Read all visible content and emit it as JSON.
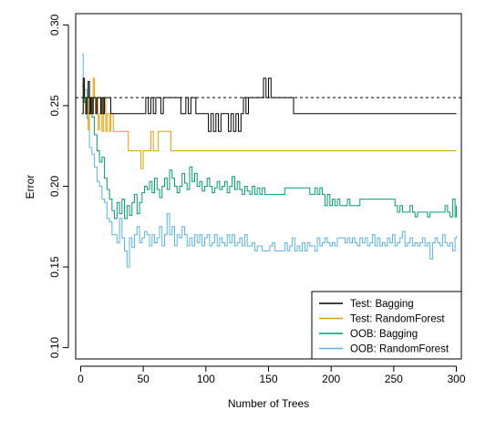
{
  "chart_data": {
    "type": "line",
    "xlabel": "Number of Trees",
    "ylabel": "Error",
    "xlim": [
      -4,
      304
    ],
    "ylim": [
      0.093,
      0.307
    ],
    "x_ticks": [
      0,
      50,
      100,
      150,
      200,
      250,
      300
    ],
    "y_ticks": [
      0.1,
      0.15,
      0.2,
      0.25,
      0.3
    ],
    "x_tick_labels": [
      "0",
      "50",
      "100",
      "150",
      "200",
      "250",
      "300"
    ],
    "y_tick_labels": [
      "0.10",
      "0.15",
      "0.20",
      "0.25",
      "0.30"
    ],
    "reference_line": {
      "y": 0.255,
      "style": "dashed",
      "color": "#000000"
    },
    "legend_position": "bottom-right",
    "series": [
      {
        "name": "Test: Bagging",
        "color": "#000000",
        "x": [
          1,
          2,
          3,
          4,
          5,
          6,
          7,
          8,
          9,
          10,
          11,
          12,
          13,
          14,
          15,
          16,
          17,
          18,
          19,
          20,
          21,
          22,
          24,
          26,
          28,
          30,
          32,
          34,
          36,
          38,
          40,
          42,
          44,
          46,
          48,
          50,
          52,
          54,
          56,
          58,
          60,
          62,
          64,
          66,
          68,
          70,
          72,
          74,
          76,
          78,
          80,
          82,
          84,
          86,
          88,
          90,
          92,
          94,
          96,
          98,
          100,
          102,
          104,
          106,
          108,
          110,
          112,
          114,
          116,
          118,
          120,
          122,
          124,
          126,
          128,
          130,
          132,
          134,
          136,
          138,
          140,
          142,
          144,
          146,
          148,
          150,
          152,
          154,
          156,
          158,
          160,
          162,
          164,
          166,
          170,
          200,
          250,
          300
        ],
        "y": [
          0.245,
          0.267,
          0.255,
          0.245,
          0.255,
          0.265,
          0.245,
          0.255,
          0.245,
          0.255,
          0.255,
          0.245,
          0.255,
          0.255,
          0.255,
          0.245,
          0.255,
          0.245,
          0.255,
          0.255,
          0.255,
          0.255,
          0.245,
          0.245,
          0.245,
          0.245,
          0.245,
          0.245,
          0.245,
          0.245,
          0.245,
          0.245,
          0.245,
          0.245,
          0.245,
          0.245,
          0.255,
          0.245,
          0.255,
          0.245,
          0.255,
          0.255,
          0.245,
          0.255,
          0.255,
          0.255,
          0.255,
          0.255,
          0.255,
          0.255,
          0.245,
          0.245,
          0.255,
          0.245,
          0.255,
          0.255,
          0.245,
          0.245,
          0.245,
          0.245,
          0.245,
          0.234,
          0.245,
          0.234,
          0.245,
          0.234,
          0.245,
          0.245,
          0.245,
          0.234,
          0.245,
          0.234,
          0.245,
          0.234,
          0.245,
          0.255,
          0.245,
          0.255,
          0.255,
          0.255,
          0.255,
          0.255,
          0.255,
          0.267,
          0.255,
          0.267,
          0.255,
          0.255,
          0.255,
          0.255,
          0.255,
          0.255,
          0.255,
          0.255,
          0.245,
          0.245,
          0.245,
          0.245
        ]
      },
      {
        "name": "Test: RandomForest",
        "color": "#E69F00",
        "x": [
          1,
          2,
          3,
          4,
          5,
          6,
          7,
          8,
          9,
          10,
          11,
          12,
          13,
          14,
          15,
          16,
          17,
          18,
          19,
          20,
          21,
          22,
          23,
          24,
          26,
          28,
          30,
          32,
          34,
          36,
          38,
          40,
          42,
          44,
          46,
          48,
          50,
          52,
          54,
          56,
          58,
          60,
          62,
          64,
          66,
          68,
          70,
          72,
          100,
          150,
          200,
          250,
          300
        ],
        "y": [
          0.245,
          0.265,
          0.255,
          0.245,
          0.255,
          0.235,
          0.245,
          0.255,
          0.245,
          0.267,
          0.255,
          0.245,
          0.255,
          0.235,
          0.245,
          0.255,
          0.234,
          0.245,
          0.255,
          0.234,
          0.245,
          0.245,
          0.234,
          0.245,
          0.234,
          0.234,
          0.234,
          0.234,
          0.234,
          0.234,
          0.222,
          0.222,
          0.222,
          0.222,
          0.222,
          0.211,
          0.222,
          0.222,
          0.222,
          0.234,
          0.222,
          0.222,
          0.234,
          0.234,
          0.234,
          0.234,
          0.234,
          0.222,
          0.222,
          0.222,
          0.222,
          0.222,
          0.222
        ]
      },
      {
        "name": "OOB: Bagging",
        "color": "#009E73",
        "x": [
          1,
          3,
          5,
          7,
          9,
          11,
          13,
          15,
          17,
          19,
          21,
          23,
          25,
          27,
          29,
          31,
          33,
          35,
          37,
          39,
          41,
          43,
          45,
          47,
          49,
          51,
          53,
          55,
          57,
          59,
          61,
          63,
          65,
          67,
          69,
          71,
          73,
          75,
          77,
          79,
          81,
          83,
          85,
          87,
          89,
          91,
          93,
          95,
          97,
          99,
          101,
          103,
          105,
          107,
          109,
          111,
          113,
          115,
          117,
          119,
          121,
          123,
          125,
          127,
          129,
          131,
          133,
          135,
          137,
          139,
          141,
          143,
          145,
          147,
          149,
          151,
          153,
          155,
          157,
          159,
          161,
          163,
          165,
          167,
          169,
          171,
          173,
          175,
          177,
          179,
          181,
          183,
          185,
          187,
          189,
          191,
          193,
          195,
          197,
          199,
          201,
          203,
          205,
          207,
          209,
          211,
          213,
          215,
          217,
          219,
          221,
          223,
          225,
          227,
          229,
          231,
          233,
          235,
          237,
          239,
          241,
          243,
          245,
          247,
          249,
          251,
          253,
          255,
          257,
          259,
          261,
          263,
          265,
          267,
          269,
          271,
          273,
          275,
          277,
          279,
          281,
          283,
          285,
          287,
          289,
          291,
          293,
          295,
          297,
          299,
          300
        ],
        "y": [
          0.262,
          0.252,
          0.245,
          0.255,
          0.243,
          0.232,
          0.222,
          0.215,
          0.218,
          0.205,
          0.198,
          0.192,
          0.185,
          0.18,
          0.19,
          0.183,
          0.192,
          0.18,
          0.188,
          0.182,
          0.19,
          0.195,
          0.183,
          0.19,
          0.196,
          0.2,
          0.198,
          0.203,
          0.196,
          0.205,
          0.198,
          0.193,
          0.2,
          0.205,
          0.198,
          0.21,
          0.205,
          0.2,
          0.196,
          0.2,
          0.208,
          0.202,
          0.198,
          0.212,
          0.203,
          0.208,
          0.2,
          0.203,
          0.197,
          0.2,
          0.205,
          0.2,
          0.196,
          0.199,
          0.203,
          0.198,
          0.2,
          0.203,
          0.196,
          0.2,
          0.206,
          0.198,
          0.203,
          0.198,
          0.195,
          0.2,
          0.197,
          0.195,
          0.2,
          0.195,
          0.199,
          0.195,
          0.199,
          0.195,
          0.195,
          0.195,
          0.195,
          0.195,
          0.195,
          0.195,
          0.195,
          0.199,
          0.199,
          0.199,
          0.199,
          0.199,
          0.199,
          0.199,
          0.199,
          0.199,
          0.199,
          0.195,
          0.195,
          0.199,
          0.195,
          0.199,
          0.195,
          0.188,
          0.195,
          0.188,
          0.192,
          0.188,
          0.192,
          0.188,
          0.188,
          0.188,
          0.192,
          0.188,
          0.188,
          0.188,
          0.188,
          0.192,
          0.192,
          0.192,
          0.192,
          0.192,
          0.192,
          0.192,
          0.192,
          0.192,
          0.192,
          0.192,
          0.192,
          0.192,
          0.192,
          0.188,
          0.184,
          0.188,
          0.184,
          0.184,
          0.184,
          0.188,
          0.184,
          0.181,
          0.184,
          0.184,
          0.184,
          0.184,
          0.181,
          0.184,
          0.184,
          0.184,
          0.184,
          0.184,
          0.184,
          0.188,
          0.184,
          0.181,
          0.192,
          0.181,
          0.188
        ]
      },
      {
        "name": "OOB: RandomForest",
        "color": "#56B4E9",
        "x": [
          1,
          2,
          3,
          5,
          7,
          9,
          11,
          13,
          15,
          17,
          19,
          21,
          23,
          25,
          27,
          29,
          31,
          33,
          35,
          37,
          39,
          41,
          43,
          45,
          47,
          49,
          51,
          53,
          55,
          57,
          59,
          61,
          63,
          65,
          67,
          69,
          71,
          73,
          75,
          77,
          79,
          81,
          83,
          85,
          87,
          89,
          91,
          93,
          95,
          97,
          99,
          101,
          103,
          105,
          107,
          109,
          111,
          113,
          115,
          117,
          119,
          121,
          123,
          125,
          127,
          129,
          131,
          133,
          135,
          137,
          139,
          141,
          143,
          145,
          147,
          149,
          151,
          153,
          155,
          157,
          159,
          161,
          163,
          165,
          167,
          169,
          171,
          173,
          175,
          177,
          179,
          181,
          183,
          185,
          187,
          189,
          191,
          193,
          195,
          197,
          199,
          201,
          203,
          205,
          207,
          209,
          211,
          213,
          215,
          217,
          219,
          221,
          223,
          225,
          227,
          229,
          231,
          233,
          235,
          237,
          239,
          241,
          243,
          245,
          247,
          249,
          251,
          253,
          255,
          257,
          259,
          261,
          263,
          265,
          267,
          269,
          271,
          273,
          275,
          277,
          279,
          281,
          283,
          285,
          287,
          289,
          291,
          293,
          295,
          297,
          299,
          300
        ],
        "y": [
          0.282,
          0.252,
          0.26,
          0.242,
          0.224,
          0.22,
          0.212,
          0.203,
          0.2,
          0.192,
          0.19,
          0.18,
          0.178,
          0.17,
          0.17,
          0.165,
          0.18,
          0.168,
          0.16,
          0.15,
          0.168,
          0.162,
          0.17,
          0.175,
          0.165,
          0.168,
          0.172,
          0.17,
          0.163,
          0.17,
          0.165,
          0.168,
          0.175,
          0.163,
          0.17,
          0.183,
          0.17,
          0.175,
          0.163,
          0.17,
          0.168,
          0.175,
          0.17,
          0.163,
          0.168,
          0.163,
          0.17,
          0.165,
          0.17,
          0.163,
          0.168,
          0.17,
          0.163,
          0.165,
          0.17,
          0.163,
          0.168,
          0.165,
          0.163,
          0.17,
          0.165,
          0.17,
          0.163,
          0.165,
          0.168,
          0.163,
          0.17,
          0.163,
          0.163,
          0.165,
          0.16,
          0.163,
          0.163,
          0.16,
          0.16,
          0.16,
          0.163,
          0.165,
          0.16,
          0.16,
          0.16,
          0.16,
          0.165,
          0.16,
          0.163,
          0.168,
          0.16,
          0.163,
          0.16,
          0.165,
          0.16,
          0.165,
          0.163,
          0.163,
          0.16,
          0.168,
          0.163,
          0.165,
          0.168,
          0.165,
          0.163,
          0.165,
          0.163,
          0.168,
          0.168,
          0.168,
          0.165,
          0.168,
          0.165,
          0.168,
          0.165,
          0.163,
          0.168,
          0.165,
          0.168,
          0.163,
          0.165,
          0.17,
          0.163,
          0.168,
          0.163,
          0.165,
          0.163,
          0.168,
          0.165,
          0.17,
          0.163,
          0.165,
          0.168,
          0.172,
          0.163,
          0.165,
          0.168,
          0.163,
          0.165,
          0.163,
          0.165,
          0.168,
          0.163,
          0.165,
          0.155,
          0.165,
          0.168,
          0.165,
          0.163,
          0.17,
          0.165,
          0.163,
          0.165,
          0.16,
          0.168,
          0.169
        ]
      }
    ]
  }
}
